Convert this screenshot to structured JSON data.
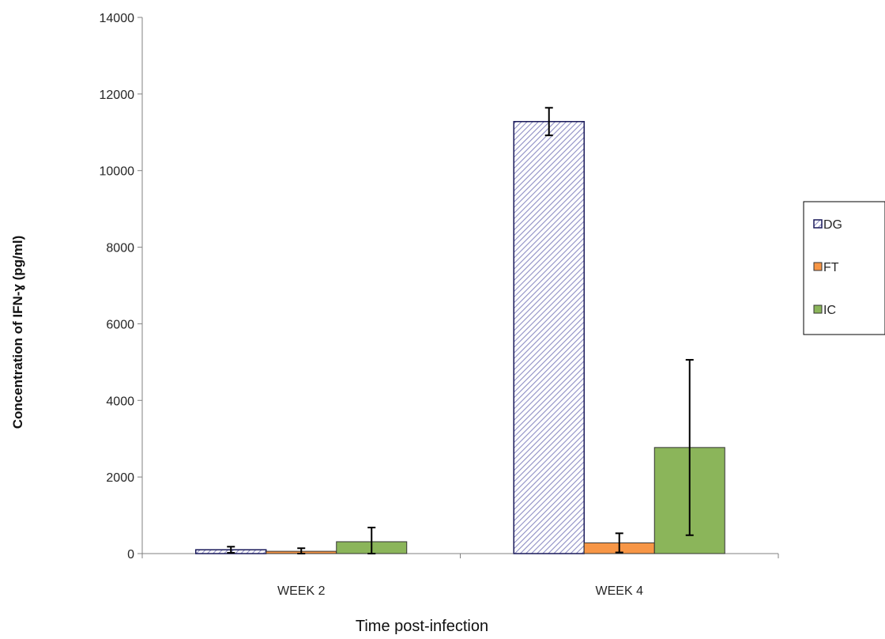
{
  "chart_data": {
    "type": "bar",
    "title": "",
    "xlabel": "Time post-infection",
    "ylabel": "Concentration of IFN-ɣ (pg/ml)",
    "categories": [
      "WEEK 2",
      "WEEK 4"
    ],
    "ylim": [
      0,
      14000
    ],
    "yticks": [
      0,
      2000,
      4000,
      6000,
      8000,
      10000,
      12000,
      14000
    ],
    "grid": false,
    "legend_position": "right",
    "series": [
      {
        "name": "DG",
        "values": [
          100,
          11280
        ],
        "error": [
          80,
          360
        ],
        "color": "#c8c8e6",
        "edge": "#1a1a5a",
        "pattern": "hatched"
      },
      {
        "name": "FT",
        "values": [
          60,
          280
        ],
        "error": [
          80,
          250
        ],
        "color": "#f79646",
        "edge": "#333333",
        "pattern": "solid"
      },
      {
        "name": "IC",
        "values": [
          310,
          2770
        ],
        "error": [
          370,
          2290
        ],
        "color": "#8bb55a",
        "edge": "#333333",
        "pattern": "solid"
      }
    ]
  }
}
